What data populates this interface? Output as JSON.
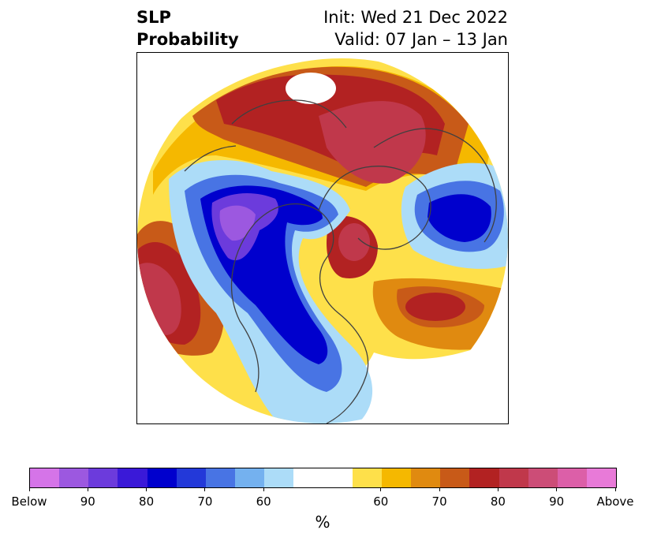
{
  "title": {
    "line1_left": "SLP",
    "line2_left": "Probability",
    "line1_right": "Init: Wed 21 Dec 2022",
    "line2_right": "Valid: 07 Jan – 13 Jan"
  },
  "colorbar": {
    "colors": [
      "#d574e8",
      "#9c58e0",
      "#6c3bdc",
      "#3a19d8",
      "#0000cd",
      "#2339d9",
      "#4874e4",
      "#74b1ef",
      "#acdcf8",
      "#ffffff",
      "#ffffff",
      "#fee04a",
      "#f5b800",
      "#e08a10",
      "#c85a18",
      "#b22222",
      "#c0384b",
      "#cc4d77",
      "#dc5fa8",
      "#e87ad8"
    ],
    "labels": [
      "Below",
      "90",
      "80",
      "70",
      "60",
      "60",
      "70",
      "80",
      "90",
      "Above"
    ],
    "unit": "%"
  },
  "map": {
    "projection": "north-polar-stereographic",
    "features": [
      "coastlines",
      "country-borders",
      "us-state-borders"
    ]
  }
}
